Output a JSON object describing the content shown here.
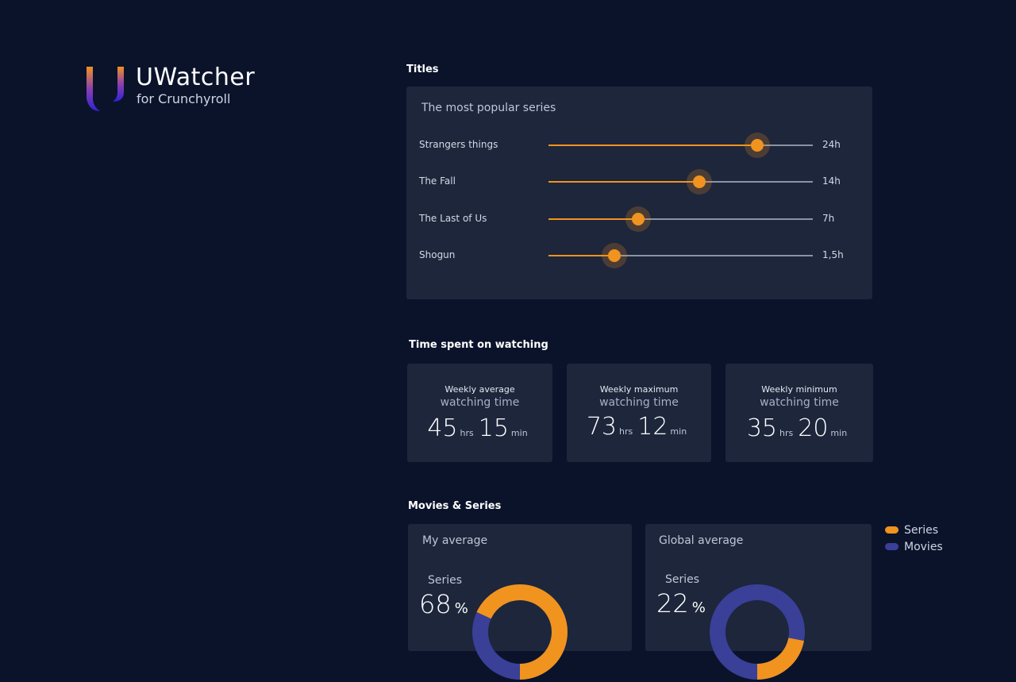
{
  "brand": {
    "name": "UWatcher",
    "subtitle": "for Crunchyroll"
  },
  "titles": {
    "section_title": "Titles",
    "card_heading": "The most popular series",
    "items": [
      {
        "name": "Strangers things",
        "value": "24h",
        "fill_percent": 79
      },
      {
        "name": "The Fall",
        "value": "14h",
        "fill_percent": 57
      },
      {
        "name": "The Last of Us",
        "value": "7h",
        "fill_percent": 34
      },
      {
        "name": "Shogun",
        "value": "1,5h",
        "fill_percent": 25
      }
    ]
  },
  "time": {
    "section_title": "Time spent on watching",
    "cards": [
      {
        "line1": "Weekly average",
        "line2": "watching time",
        "hours": "45",
        "hours_unit": "hrs",
        "minutes": "15",
        "minutes_unit": "min"
      },
      {
        "line1": "Weekly maximum",
        "line2": "watching time",
        "hours": "73",
        "hours_unit": "hrs",
        "minutes": "12",
        "minutes_unit": "min"
      },
      {
        "line1": "Weekly minimum",
        "line2": "watching time",
        "hours": "35",
        "hours_unit": "hrs",
        "minutes": "20",
        "minutes_unit": "min"
      }
    ]
  },
  "movies_series": {
    "section_title": "Movies & Series",
    "cards": [
      {
        "title": "My average",
        "label": "Series",
        "percent": "68",
        "percent_sign": "%",
        "series_share": 68
      },
      {
        "title": "Global average",
        "label": "Series",
        "percent": "22",
        "percent_sign": "%",
        "series_share": 22
      }
    ],
    "legend": [
      {
        "label": "Series",
        "color": "#f0931f"
      },
      {
        "label": "Movies",
        "color": "#3a3f97"
      }
    ]
  },
  "colors": {
    "accent": "#f0931f",
    "movies": "#3a3f97",
    "background": "#0b132b",
    "card": "#1d263b"
  }
}
